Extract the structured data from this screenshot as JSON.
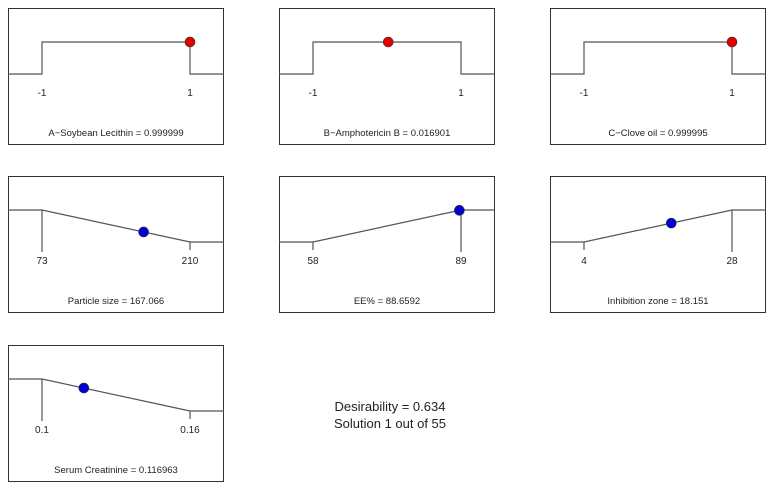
{
  "chart_data": [
    {
      "type": "line",
      "label": "A−Soybean Lecithin = 0.999999",
      "variable": "Soybean Lecithin",
      "goal": "range",
      "ticks": [
        "-1",
        "1"
      ],
      "range": [
        -1,
        1
      ],
      "value": 0.999999,
      "dot_color": "#e00000"
    },
    {
      "type": "line",
      "label": "B−Amphotericin B = 0.016901",
      "variable": "Amphotericin B",
      "goal": "range",
      "ticks": [
        "-1",
        "1"
      ],
      "range": [
        -1,
        1
      ],
      "value": 0.016901,
      "dot_color": "#e00000"
    },
    {
      "type": "line",
      "label": "C−Clove oil = 0.999995",
      "variable": "Clove oil",
      "goal": "range",
      "ticks": [
        "-1",
        "1"
      ],
      "range": [
        -1,
        1
      ],
      "value": 0.999995,
      "dot_color": "#e00000"
    },
    {
      "type": "line",
      "label": "Particle size = 167.066",
      "variable": "Particle size",
      "goal": "minimize",
      "ticks": [
        "73",
        "210"
      ],
      "range": [
        73,
        210
      ],
      "value": 167.066,
      "dot_color": "#0000d0"
    },
    {
      "type": "line",
      "label": "EE% = 88.6592",
      "variable": "EE%",
      "goal": "maximize",
      "ticks": [
        "58",
        "89"
      ],
      "range": [
        58,
        89
      ],
      "value": 88.6592,
      "dot_color": "#0000d0"
    },
    {
      "type": "line",
      "label": "Inhibition zone = 18.151",
      "variable": "Inhibition zone",
      "goal": "maximize",
      "ticks": [
        "4",
        "28"
      ],
      "range": [
        4,
        28
      ],
      "value": 18.151,
      "dot_color": "#0000d0"
    },
    {
      "type": "line",
      "label": "Serum Creatinine = 0.116963",
      "variable": "Serum Creatinine",
      "goal": "minimize",
      "ticks": [
        "0.1",
        "0.16"
      ],
      "range": [
        0.1,
        0.16
      ],
      "value": 0.116963,
      "dot_color": "#0000d0"
    }
  ],
  "summary": {
    "desirability": "Desirability = 0.634",
    "solution": "Solution 1 out of 55"
  }
}
